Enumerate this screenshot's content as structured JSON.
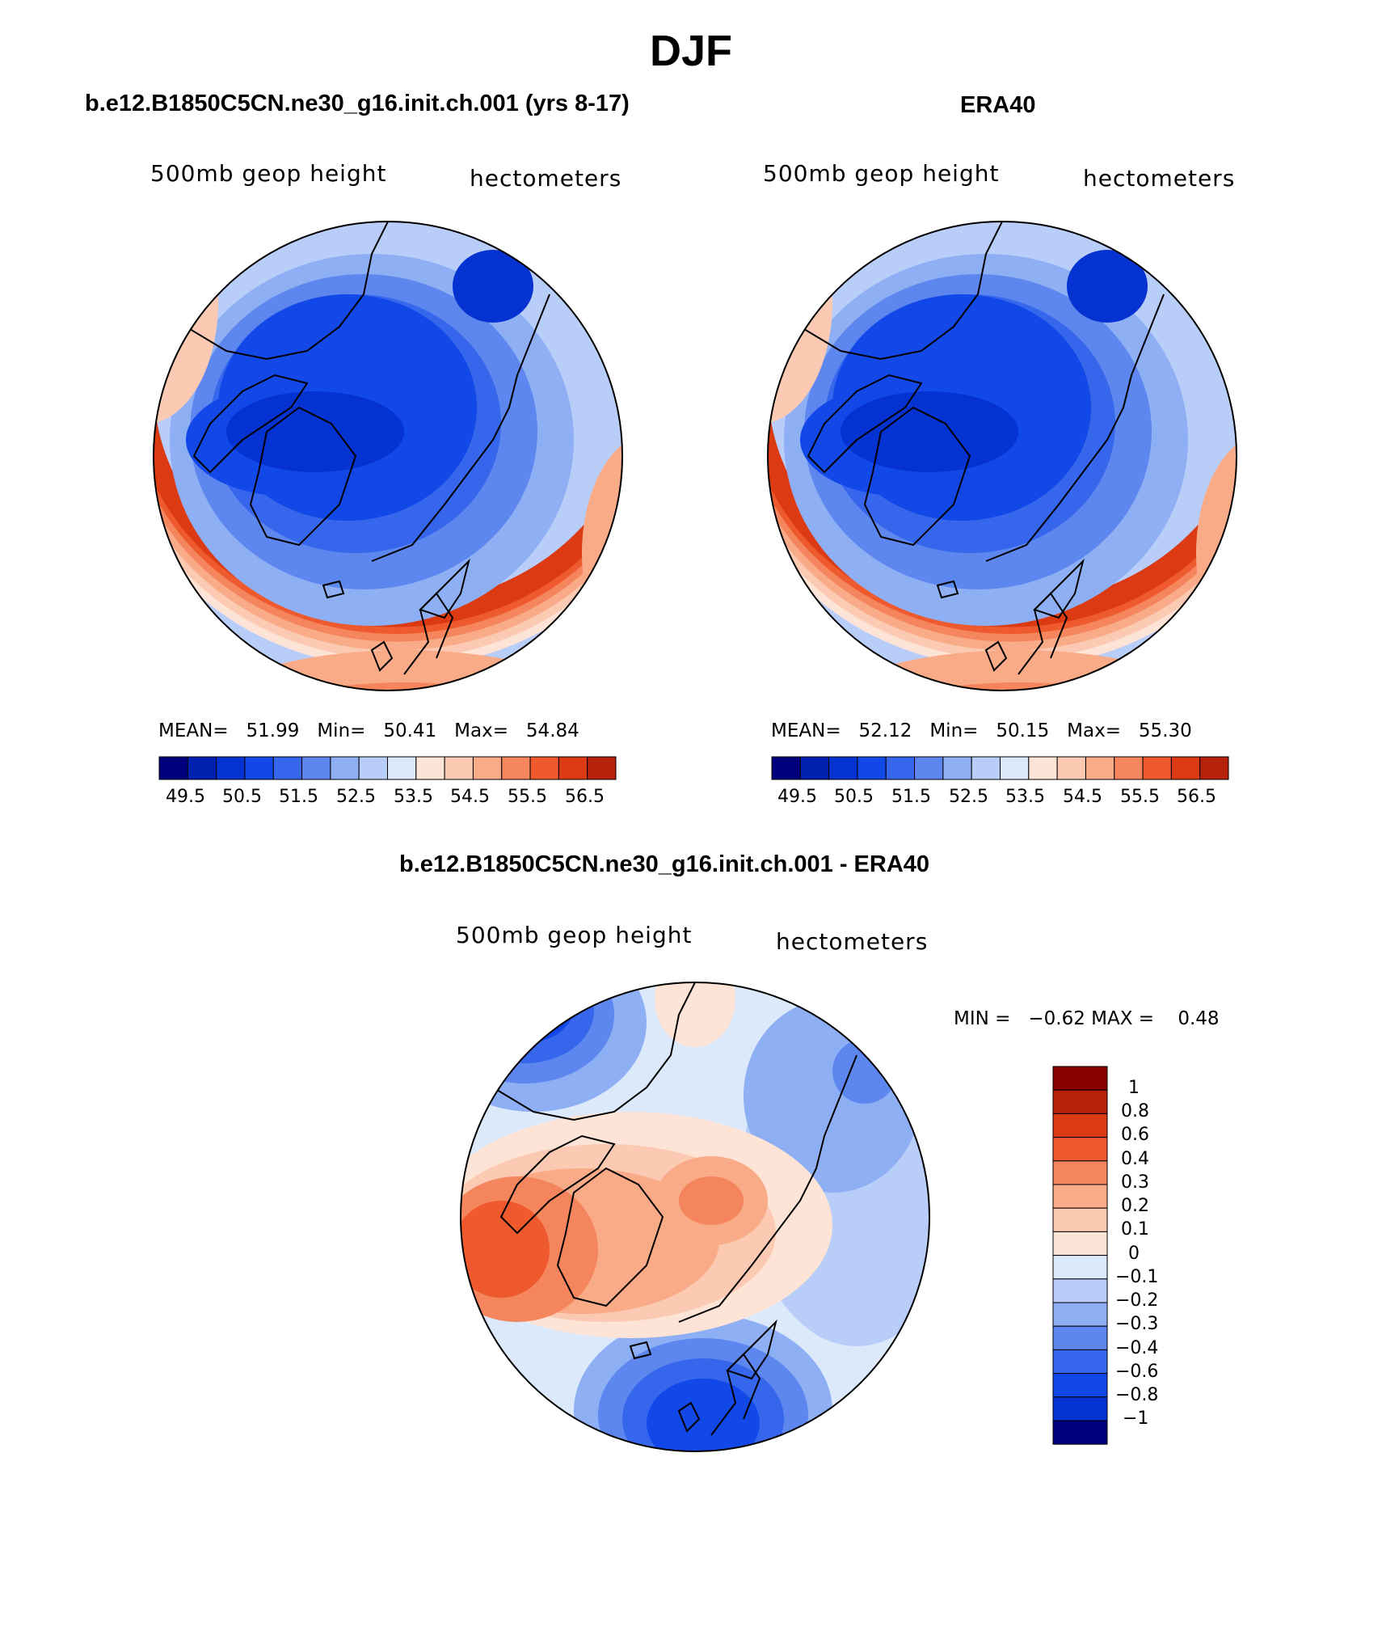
{
  "title": "DJF",
  "variable": "500mb geop height",
  "units": "hectometers",
  "palette": [
    "#00007e",
    "#0021b0",
    "#0433d2",
    "#1348e8",
    "#3566ec",
    "#5d87ef",
    "#8faff4",
    "#b8cdf8",
    "#dce9fb",
    "#fde4d6",
    "#fccab2",
    "#f9ab88",
    "#f5855c",
    "#ee5a2e",
    "#dc3a13",
    "#b5210a",
    "#880000"
  ],
  "chart_data": [
    {
      "type": "heatmap",
      "projection": "north-polar-stereographic",
      "title": "b.e12.B1850C5CN.ne30_g16.init.ch.001 (yrs 8-17)",
      "left_label": "500mb geop height",
      "right_label": "hectometers",
      "stats": {
        "mean_label": "MEAN=",
        "mean": "51.99",
        "min_label": "Min=",
        "min": "50.41",
        "max_label": "Max=",
        "max": "54.84"
      },
      "levels": [
        50.0,
        50.5,
        51.0,
        51.5,
        52.0,
        52.5,
        53.0,
        53.5,
        54.0,
        54.5,
        55.0,
        55.5,
        56.0,
        56.5
      ],
      "tick_labels": [
        "49.5",
        "50.5",
        "51.5",
        "52.5",
        "53.5",
        "54.5",
        "55.5",
        "56.5"
      ]
    },
    {
      "type": "heatmap",
      "projection": "north-polar-stereographic",
      "title": "ERA40",
      "left_label": "500mb geop height",
      "right_label": "hectometers",
      "stats": {
        "mean_label": "MEAN=",
        "mean": "52.12",
        "min_label": "Min=",
        "min": "50.15",
        "max_label": "Max=",
        "max": "55.30"
      },
      "levels": [
        50.0,
        50.5,
        51.0,
        51.5,
        52.0,
        52.5,
        53.0,
        53.5,
        54.0,
        54.5,
        55.0,
        55.5,
        56.0,
        56.5
      ],
      "tick_labels": [
        "49.5",
        "50.5",
        "51.5",
        "52.5",
        "53.5",
        "54.5",
        "55.5",
        "56.5"
      ]
    },
    {
      "type": "heatmap",
      "projection": "north-polar-stereographic",
      "title": "b.e12.B1850C5CN.ne30_g16.init.ch.001 - ERA40",
      "left_label": "500mb geop height",
      "right_label": "hectometers",
      "stats": {
        "min_label": "MIN =",
        "min": "−0.62",
        "max_label": "MAX =",
        "max": "0.48"
      },
      "levels": [
        -1,
        -0.8,
        -0.6,
        -0.4,
        -0.3,
        -0.2,
        -0.1,
        0,
        0.1,
        0.2,
        0.3,
        0.4,
        0.6,
        0.8,
        1
      ],
      "tick_labels": [
        "1",
        "0.8",
        "0.6",
        "0.4",
        "0.3",
        "0.2",
        "0.1",
        "0",
        "−0.1",
        "−0.2",
        "−0.3",
        "−0.4",
        "−0.6",
        "−0.8",
        "−1"
      ]
    }
  ]
}
